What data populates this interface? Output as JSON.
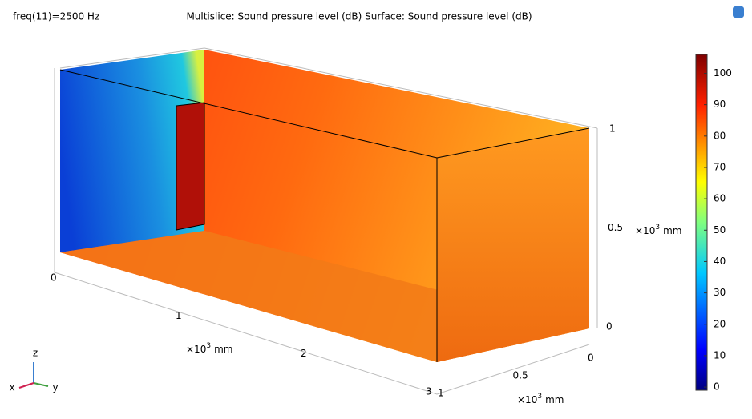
{
  "chart_data": {
    "type": "surface3d",
    "frequency_label": "freq(11)=2500 Hz",
    "title": "Multislice: Sound pressure level (dB)  Surface: Sound pressure level (dB)",
    "colorbar": {
      "lim": [
        -1,
        106
      ],
      "ticks": [
        0,
        10,
        20,
        30,
        40,
        50,
        60,
        70,
        80,
        90,
        100
      ]
    },
    "axis_scale": {
      "prefix": "×10",
      "exponent": "3",
      "unit": "mm"
    },
    "x_axis": {
      "lim": [
        0,
        3
      ],
      "ticks": [
        0,
        1,
        2,
        3
      ]
    },
    "y_axis": {
      "lim": [
        0,
        1
      ],
      "ticks": [
        0,
        0.5,
        1
      ]
    },
    "z_axis": {
      "lim": [
        0,
        1
      ],
      "ticks": [
        0,
        0.5,
        1
      ]
    },
    "triad": {
      "x": "x",
      "y": "y",
      "z": "z"
    }
  }
}
